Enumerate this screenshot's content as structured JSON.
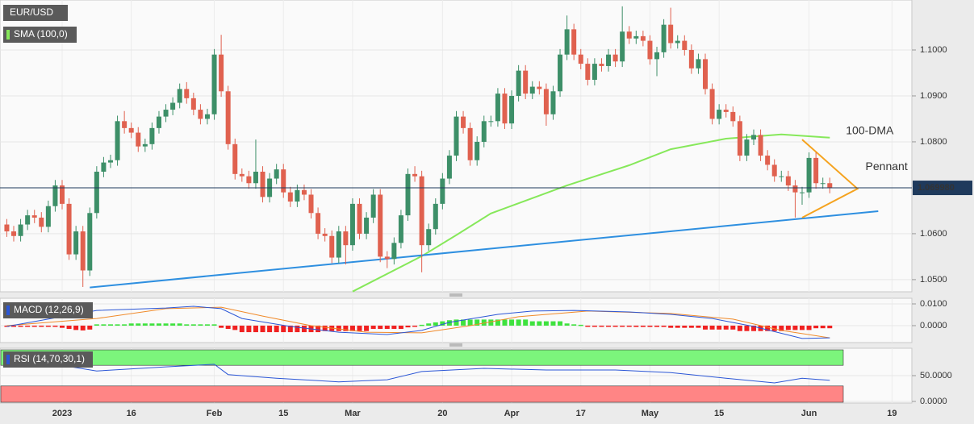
{
  "chart_data": {
    "type": "candlestick",
    "title": "EUR/USD",
    "categories": [
      null,
      null,
      null,
      null,
      null,
      null,
      null,
      null,
      "2023",
      null,
      null,
      null,
      null,
      null,
      null,
      null,
      null,
      null,
      "16",
      null,
      null,
      null,
      null,
      null,
      null,
      null,
      null,
      null,
      null,
      null,
      "Feb",
      null,
      null,
      null,
      null,
      null,
      null,
      null,
      null,
      null,
      "15",
      null,
      null,
      null,
      null,
      null,
      null,
      null,
      null,
      null,
      "Mar",
      null,
      null,
      null,
      null,
      null,
      null,
      null,
      null,
      null,
      null,
      null,
      null,
      "20",
      null,
      null,
      null,
      null,
      null,
      null,
      null,
      null,
      null,
      "Apr",
      null,
      null,
      null,
      null,
      null,
      null,
      null,
      null,
      null,
      "17",
      null,
      null,
      null,
      null,
      null,
      null,
      null,
      null,
      null,
      "May",
      null,
      null,
      null,
      null,
      null,
      null,
      null,
      null,
      null,
      "15",
      null,
      null,
      null,
      null,
      null,
      null,
      null,
      null,
      null,
      null,
      null,
      null,
      "Jun",
      null,
      null,
      null,
      null,
      null,
      null,
      null,
      null,
      null,
      null,
      null,
      "19",
      null,
      null
    ],
    "open": [
      1.062,
      1.0605,
      1.0595,
      1.062,
      1.064,
      1.0635,
      1.0615,
      1.066,
      1.0705,
      1.0665,
      1.0555,
      1.0605,
      1.052,
      1.0645,
      1.0735,
      1.0755,
      1.076,
      1.0845,
      1.083,
      1.082,
      1.079,
      1.0795,
      1.083,
      1.0855,
      1.087,
      1.0885,
      1.0915,
      1.0895,
      1.087,
      1.085,
      1.086,
      1.099,
      1.091,
      1.0795,
      1.073,
      1.0725,
      1.071,
      1.0735,
      1.068,
      1.072,
      1.074,
      1.069,
      1.067,
      1.0695,
      1.0685,
      1.0645,
      1.06,
      1.0595,
      1.0548,
      1.0605,
      1.0575,
      1.0665,
      1.06,
      1.0635,
      1.0685,
      1.055,
      1.0545,
      1.058,
      1.064,
      1.073,
      1.0725,
      1.0575,
      1.061,
      1.0665,
      1.072,
      1.077,
      1.0855,
      1.083,
      1.076,
      1.08,
      1.0845,
      1.0845,
      1.0905,
      1.084,
      1.09,
      1.0955,
      1.0905,
      1.092,
      1.0915,
      1.086,
      1.091,
      1.099,
      1.1045,
      1.099,
      1.097,
      1.0935,
      1.097,
      1.0965,
      1.099,
      1.0975,
      1.104,
      1.1025,
      1.103,
      1.102,
      1.098,
      1.0995,
      1.1055,
      1.1015,
      1.102,
      1.1,
      1.096,
      1.098,
      1.0915,
      1.085,
      1.087,
      1.0865,
      1.0845,
      1.077,
      1.0805,
      1.0815,
      1.077,
      1.075,
      1.0725,
      1.0725,
      1.0705,
      1.069,
      1.069,
      1.0765,
      1.071,
      1.071,
      null,
      null,
      null,
      null,
      null,
      null,
      null,
      null,
      null,
      null,
      null
    ],
    "high": [
      1.0632,
      1.0617,
      1.0632,
      1.0652,
      1.0652,
      1.0647,
      1.0672,
      1.0717,
      1.0717,
      1.0677,
      1.0617,
      1.0617,
      1.0657,
      1.0747,
      1.0767,
      1.0772,
      1.0857,
      1.0867,
      1.0842,
      1.0832,
      1.0807,
      1.0842,
      1.0867,
      1.0882,
      1.0897,
      1.0927,
      1.093,
      1.0907,
      1.0882,
      1.0872,
      1.1002,
      1.1033,
      1.0922,
      1.0807,
      1.0742,
      1.0737,
      1.0805,
      1.0747,
      1.0732,
      1.0752,
      1.0752,
      1.0702,
      1.0707,
      1.0707,
      1.0697,
      1.0657,
      1.0612,
      1.0607,
      1.0617,
      1.0617,
      1.0677,
      1.0677,
      1.0647,
      1.0697,
      1.0697,
      1.0562,
      1.0592,
      1.0652,
      1.0742,
      1.0747,
      1.0737,
      1.0622,
      1.0677,
      1.0732,
      1.0782,
      1.0867,
      1.0867,
      1.0842,
      1.0812,
      1.0857,
      1.0857,
      1.0917,
      1.0917,
      1.0912,
      1.0967,
      1.0967,
      1.0932,
      1.0932,
      1.0927,
      1.0922,
      1.1002,
      1.1075,
      1.1057,
      1.1002,
      1.0982,
      1.0982,
      1.0982,
      1.1002,
      1.1002,
      1.1095,
      1.1052,
      1.1042,
      1.1042,
      1.1032,
      1.1007,
      1.1067,
      1.1092,
      1.1032,
      1.1032,
      1.1012,
      1.0992,
      1.0992,
      1.0927,
      1.0882,
      1.0882,
      1.0877,
      1.0857,
      1.0817,
      1.0827,
      1.0827,
      1.0782,
      1.0762,
      1.0737,
      1.0737,
      1.0717,
      1.0702,
      1.0777,
      1.0777,
      1.0722,
      1.0722,
      null,
      null,
      null,
      null,
      null,
      null,
      null,
      null,
      null,
      null,
      null
    ],
    "low": [
      1.0593,
      1.0583,
      1.0583,
      1.0608,
      1.0623,
      1.0603,
      1.0603,
      1.0648,
      1.0653,
      1.0543,
      1.0543,
      1.0484,
      1.0508,
      1.0633,
      1.0723,
      1.0743,
      1.0748,
      1.0818,
      1.0808,
      1.0778,
      1.0778,
      1.0783,
      1.0818,
      1.0843,
      1.0858,
      1.0873,
      1.0883,
      1.0858,
      1.0838,
      1.0838,
      1.0848,
      1.0898,
      1.0783,
      1.0718,
      1.0713,
      1.0698,
      1.0698,
      1.0668,
      1.0668,
      1.0708,
      1.0678,
      1.0658,
      1.0658,
      1.0673,
      1.0633,
      1.0588,
      1.0583,
      1.0536,
      1.0536,
      1.0533,
      1.0563,
      1.0588,
      1.0588,
      1.0623,
      1.0538,
      1.0525,
      1.0533,
      1.0568,
      1.0628,
      1.0713,
      1.0516,
      1.0563,
      1.0598,
      1.0653,
      1.0708,
      1.0758,
      1.0818,
      1.0748,
      1.0748,
      1.0788,
      1.0833,
      1.0833,
      1.0828,
      1.0828,
      1.0888,
      1.0893,
      1.0893,
      1.0903,
      1.0835,
      1.0848,
      1.0898,
      1.0978,
      1.0978,
      1.0958,
      1.0923,
      1.0923,
      1.0953,
      1.0953,
      1.0963,
      1.0963,
      1.1013,
      1.1013,
      1.1008,
      1.0968,
      1.0943,
      1.0983,
      1.1003,
      1.1003,
      1.0988,
      1.0948,
      1.0948,
      1.0903,
      1.0838,
      1.0838,
      1.0853,
      1.0833,
      1.0758,
      1.0758,
      1.0793,
      1.0758,
      1.0738,
      1.0713,
      1.0713,
      1.0693,
      1.0635,
      1.0663,
      1.0678,
      1.0698,
      1.0698,
      1.0688,
      null,
      null,
      null,
      null,
      null,
      null,
      null,
      null,
      null,
      null,
      null
    ],
    "close": [
      1.0605,
      1.0595,
      1.062,
      1.064,
      1.0635,
      1.0615,
      1.066,
      1.0705,
      1.0665,
      1.0555,
      1.0605,
      1.052,
      1.0645,
      1.0735,
      1.0755,
      1.076,
      1.0845,
      1.083,
      1.082,
      1.079,
      1.0795,
      1.083,
      1.0855,
      1.087,
      1.0885,
      1.0915,
      1.0895,
      1.087,
      1.085,
      1.086,
      1.099,
      1.091,
      1.0795,
      1.073,
      1.0725,
      1.071,
      1.0735,
      1.068,
      1.072,
      1.074,
      1.069,
      1.067,
      1.0695,
      1.0685,
      1.0645,
      1.06,
      1.0595,
      1.0548,
      1.0605,
      1.0575,
      1.0665,
      1.06,
      1.0635,
      1.0685,
      1.055,
      1.0545,
      1.058,
      1.064,
      1.073,
      1.0725,
      1.0575,
      1.061,
      1.0665,
      1.072,
      1.077,
      1.0855,
      1.083,
      1.076,
      1.08,
      1.0845,
      1.0845,
      1.0905,
      1.084,
      1.09,
      1.0955,
      1.0905,
      1.092,
      1.0915,
      1.086,
      1.091,
      1.099,
      1.1045,
      1.099,
      1.097,
      1.0935,
      1.097,
      1.0965,
      1.099,
      1.0975,
      1.104,
      1.1025,
      1.103,
      1.102,
      1.098,
      1.0995,
      1.1055,
      1.1015,
      1.102,
      1.1,
      1.096,
      1.098,
      1.0915,
      1.085,
      1.087,
      1.0865,
      1.0845,
      1.077,
      1.0805,
      1.0815,
      1.077,
      1.075,
      1.0725,
      1.0725,
      1.0705,
      1.069,
      1.069,
      1.0765,
      1.071,
      1.071,
      1.06998,
      null,
      null,
      null,
      null,
      null,
      null,
      null,
      null,
      null,
      null,
      null
    ],
    "up_color": "#3d8f68",
    "down_color": "#e0614f",
    "last_label": "1.069980",
    "last_color": "#1f3a5c",
    "ylim": [
      1.04735,
      1.11088
    ],
    "yticks": [
      {
        "value": 1.1,
        "label": "1.1000"
      },
      {
        "value": 1.09,
        "label": "1.0900"
      },
      {
        "value": 1.08,
        "label": "1.0800"
      },
      {
        "value": 1.06,
        "label": "1.0600"
      },
      {
        "value": 1.05,
        "label": "1.0500"
      }
    ],
    "grid": true,
    "sma": {
      "name": "SMA (100,0)",
      "color": "#86e85a",
      "label": "100-DMA",
      "points": [
        [
          50,
          1.0474
        ],
        [
          60,
          1.0551
        ],
        [
          65,
          1.0597
        ],
        [
          70,
          1.0644
        ],
        [
          81,
          1.0705
        ],
        [
          90,
          1.0749
        ],
        [
          96,
          1.0784
        ],
        [
          104,
          1.0807
        ],
        [
          112,
          1.0816
        ],
        [
          119,
          1.0809
        ]
      ]
    },
    "support": {
      "color": "#2e8fe0",
      "points": [
        [
          12,
          1.0483
        ],
        [
          126,
          1.0649
        ]
      ]
    },
    "pennant": {
      "label": "Pennant",
      "color": "#f5a31f",
      "points": [
        [
          115,
          1.0805
        ],
        [
          123,
          1.0698
        ],
        [
          115,
          1.0635
        ]
      ]
    },
    "macd": {
      "name": "MACD (12,26,9)",
      "ylim": [
        -0.0078,
        0.0126
      ],
      "yticks": [
        {
          "value": 0.01,
          "label": "0.0100"
        },
        {
          "value": 0,
          "label": "0.0000"
        }
      ],
      "macd_color": "#2b56d6",
      "signal_color": "#f08a2a",
      "up_color": "#3ee23e",
      "down_color": "#f02020",
      "macd": [
        [
          0,
          -0.0004
        ],
        [
          13,
          0.007
        ],
        [
          23,
          0.0081
        ],
        [
          27,
          0.0089
        ],
        [
          31,
          0.0078
        ],
        [
          34,
          0.0033
        ],
        [
          41,
          -0.0004
        ],
        [
          48,
          -0.003
        ],
        [
          55,
          -0.0041
        ],
        [
          60,
          -0.0022
        ],
        [
          64,
          0.0015
        ],
        [
          71,
          0.0052
        ],
        [
          76,
          0.0067
        ],
        [
          82,
          0.007
        ],
        [
          90,
          0.0063
        ],
        [
          96,
          0.0052
        ],
        [
          102,
          0.0033
        ],
        [
          108,
          -0.0004
        ],
        [
          115,
          -0.0059
        ],
        [
          119,
          -0.0056
        ]
      ],
      "signal": [
        [
          0,
          0.0
        ],
        [
          13,
          0.0033
        ],
        [
          23,
          0.0078
        ],
        [
          31,
          0.0085
        ],
        [
          37,
          0.0044
        ],
        [
          44,
          0.0
        ],
        [
          52,
          -0.003
        ],
        [
          60,
          -0.0033
        ],
        [
          67,
          0.0
        ],
        [
          74,
          0.0041
        ],
        [
          84,
          0.0067
        ],
        [
          96,
          0.0056
        ],
        [
          105,
          0.003
        ],
        [
          112,
          -0.0022
        ],
        [
          119,
          -0.0056
        ]
      ],
      "histogram": [
        -0.0004,
        -0.0004,
        -0.0004,
        -0.0004,
        -0.0004,
        -0.0004,
        -0.0004,
        -0.0004,
        -0.001,
        -0.0015,
        -0.002,
        -0.0022,
        -0.0018,
        0.0006,
        0.0006,
        0.0006,
        0.0006,
        0.0006,
        0.001,
        0.001,
        0.001,
        0.001,
        0.001,
        0.001,
        0.001,
        0.001,
        0.0006,
        0.0006,
        0.0006,
        0.0006,
        0.0006,
        -0.001,
        -0.0015,
        -0.002,
        -0.003,
        -0.003,
        -0.003,
        -0.003,
        -0.003,
        -0.003,
        -0.003,
        -0.003,
        -0.003,
        -0.003,
        -0.003,
        -0.003,
        -0.0025,
        -0.0025,
        -0.0025,
        -0.0025,
        -0.0025,
        -0.0025,
        -0.0025,
        -0.0015,
        -0.0015,
        -0.0015,
        -0.0015,
        -0.0015,
        -0.0008,
        -0.0004,
        0.0004,
        0.001,
        0.0015,
        0.002,
        0.0025,
        0.0028,
        0.0028,
        0.0028,
        0.0028,
        0.0028,
        0.0028,
        0.0028,
        0.0028,
        0.0028,
        0.0028,
        0.0028,
        0.002,
        0.002,
        0.002,
        0.002,
        0.002,
        0.001,
        0.0006,
        0.0004,
        -0.0004,
        -0.0004,
        -0.0004,
        -0.0004,
        -0.0004,
        -0.0004,
        -0.0004,
        -0.0006,
        -0.0006,
        -0.0006,
        -0.0006,
        -0.0006,
        -0.001,
        -0.001,
        -0.001,
        -0.001,
        -0.001,
        -0.0018,
        -0.0018,
        -0.0018,
        -0.0018,
        -0.0018,
        -0.0025,
        -0.0025,
        -0.0025,
        -0.0025,
        -0.0025,
        -0.0025,
        -0.0025,
        -0.002,
        -0.002,
        -0.002,
        -0.002,
        -0.0012,
        -0.0012,
        -0.0012,
        null,
        null,
        null,
        null,
        null,
        null,
        null,
        null,
        null,
        null,
        null
      ]
    },
    "rsi": {
      "name": "RSI (14,70,30,1)",
      "ylim": [
        -3.1,
        103.1
      ],
      "yticks": [
        {
          "value": 50,
          "label": "50.0000"
        },
        {
          "value": 0,
          "label": "0.0000"
        }
      ],
      "levels": [
        70,
        30
      ],
      "color": "#2b56d6",
      "over_color": "#7cf57c",
      "under_color": "#ff8585",
      "points": [
        [
          0,
          67
        ],
        [
          7,
          72
        ],
        [
          13,
          59
        ],
        [
          23,
          67
        ],
        [
          30,
          72
        ],
        [
          32,
          52
        ],
        [
          39,
          45
        ],
        [
          48,
          38
        ],
        [
          55,
          42
        ],
        [
          60,
          58
        ],
        [
          69,
          64
        ],
        [
          78,
          61
        ],
        [
          88,
          61
        ],
        [
          96,
          56
        ],
        [
          104,
          45
        ],
        [
          111,
          36
        ],
        [
          115,
          45
        ],
        [
          119,
          41
        ]
      ]
    }
  }
}
